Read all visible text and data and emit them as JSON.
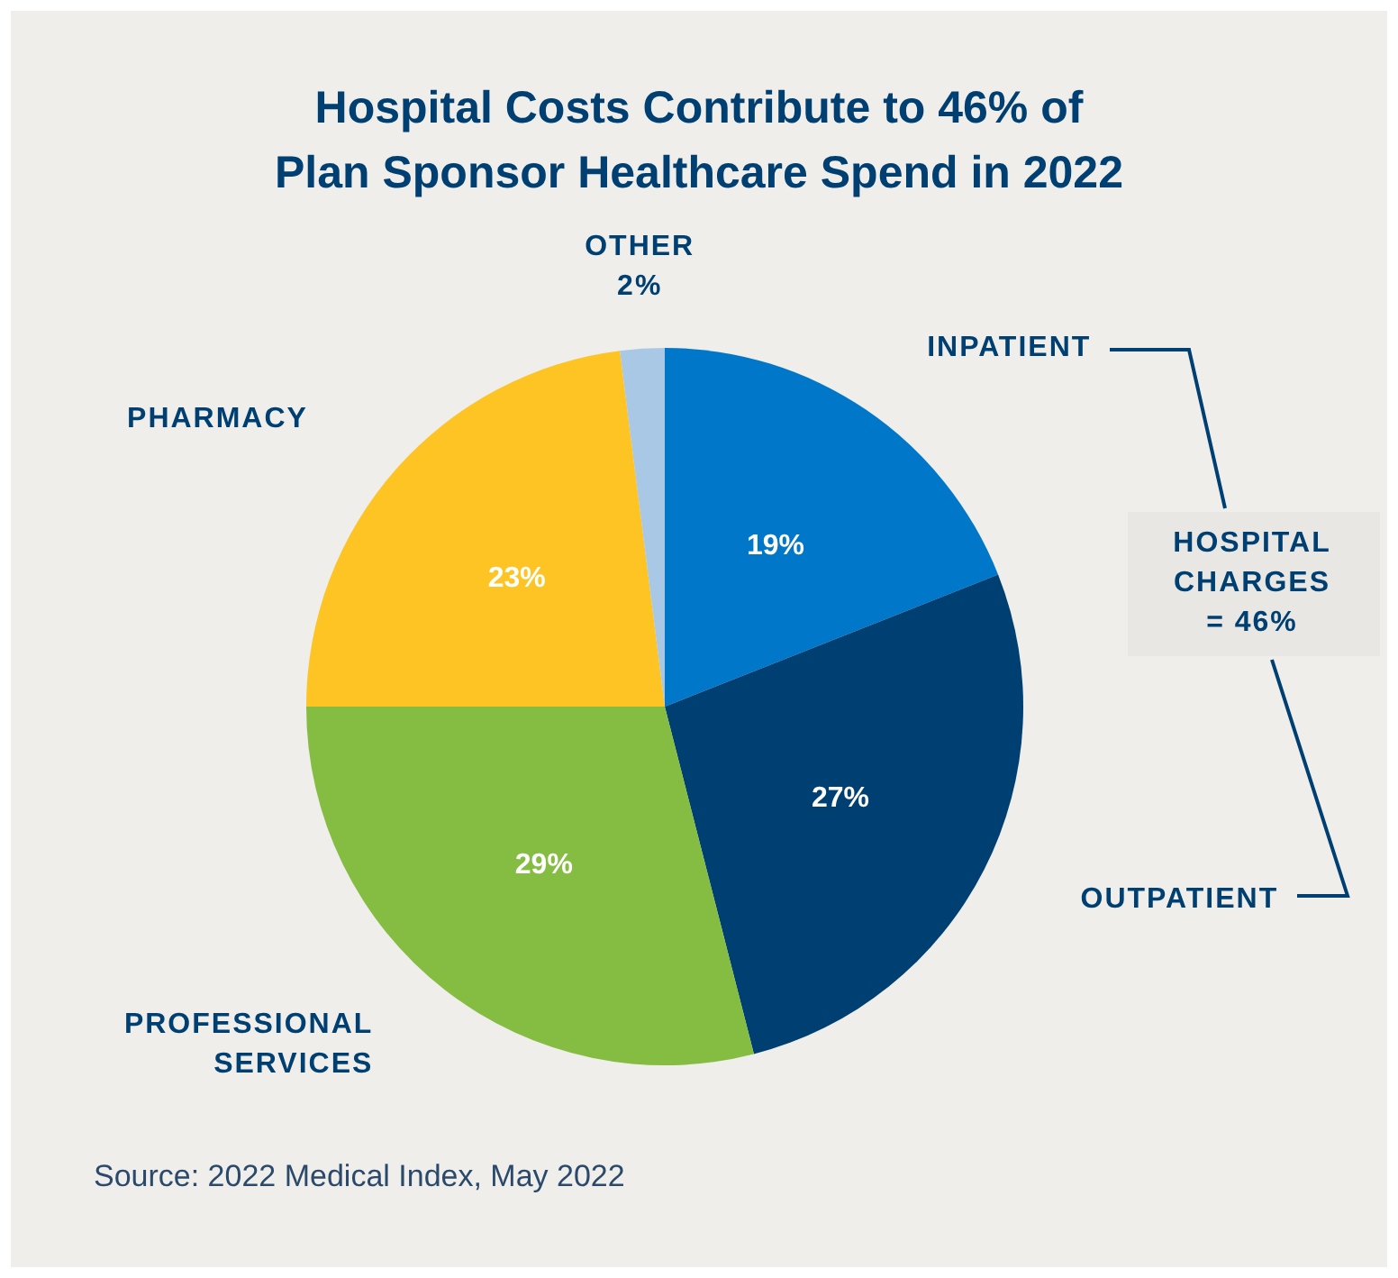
{
  "chart_data": {
    "type": "pie",
    "title": "Hospital Costs Contribute to 46% of\nPlan Sponsor Healthcare Spend in 2022",
    "categories": [
      "INPATIENT",
      "OUTPATIENT",
      "PROFESSIONAL\nSERVICES",
      "PHARMACY",
      "OTHER"
    ],
    "values": [
      19,
      27,
      29,
      23,
      2
    ],
    "value_labels": [
      "19%",
      "27%",
      "29%",
      "23%",
      "2%"
    ],
    "colors": [
      "#0077c8",
      "#003f72",
      "#84bd41",
      "#fdc423",
      "#a9c8e6"
    ],
    "annotations": [
      "HOSPITAL CHARGES = 46%",
      "Source: 2022 Medical Index, May 2022"
    ]
  }
}
